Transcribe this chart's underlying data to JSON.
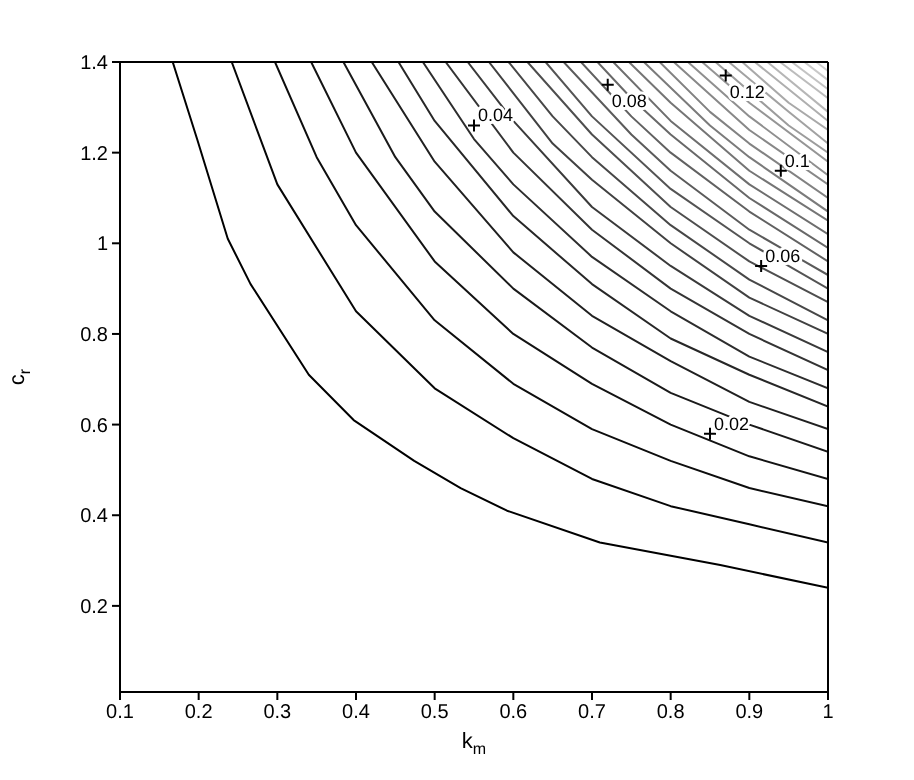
{
  "chart_data": {
    "type": "line",
    "xlabel": "k$_{m}$",
    "ylabel": "c$_{r}$",
    "xlim": [
      0.1,
      1
    ],
    "ylim": [
      0.01,
      1.4
    ],
    "xticks": [
      0.1,
      0.2,
      0.3,
      0.4,
      0.5,
      0.6,
      0.7,
      0.8,
      0.9,
      1
    ],
    "yticks": [
      0.2,
      0.4,
      0.6,
      0.8,
      1,
      1.2,
      1.4
    ],
    "marker": "none",
    "line_style": "solid",
    "series": [
      {
        "color": "#000000",
        "x": [
          0.167,
          0.198,
          0.237,
          0.266,
          0.34,
          0.397,
          0.474,
          0.533,
          0.592,
          0.71,
          0.863,
          1
        ],
        "values": [
          1.4,
          1.23,
          1.01,
          0.91,
          0.71,
          0.61,
          0.52,
          0.46,
          0.41,
          0.34,
          0.29,
          0.24
        ]
      },
      {
        "color": "#060606",
        "x": [
          0.242,
          0.3,
          0.4,
          0.5,
          0.6,
          0.7,
          0.8,
          0.9,
          1
        ],
        "values": [
          1.4,
          1.13,
          0.85,
          0.68,
          0.57,
          0.48,
          0.42,
          0.38,
          0.34
        ]
      },
      {
        "color": "#0d0d0d",
        "x": [
          0.297,
          0.35,
          0.4,
          0.5,
          0.6,
          0.7,
          0.8,
          0.9,
          1
        ],
        "values": [
          1.4,
          1.19,
          1.04,
          0.83,
          0.69,
          0.59,
          0.52,
          0.46,
          0.42
        ]
      },
      {
        "color": "#131313",
        "x": [
          0.343,
          0.4,
          0.5,
          0.6,
          0.7,
          0.8,
          0.9,
          1
        ],
        "values": [
          1.4,
          1.2,
          0.96,
          0.8,
          0.69,
          0.6,
          0.53,
          0.48
        ]
      },
      {
        "color": "#1a1a1a",
        "x": [
          0.384,
          0.45,
          0.5,
          0.6,
          0.7,
          0.8,
          0.9,
          1
        ],
        "values": [
          1.4,
          1.19,
          1.07,
          0.9,
          0.77,
          0.67,
          0.6,
          0.54
        ]
      },
      {
        "color": "#202020",
        "x": [
          0.42,
          0.5,
          0.6,
          0.7,
          0.8,
          0.9,
          1
        ],
        "values": [
          1.4,
          1.18,
          0.98,
          0.84,
          0.74,
          0.65,
          0.59
        ]
      },
      {
        "color": "#272727",
        "x": [
          0.454,
          0.5,
          0.6,
          0.7,
          0.8,
          0.9,
          1
        ],
        "values": [
          1.4,
          1.27,
          1.06,
          0.91,
          0.79,
          0.71,
          0.64
        ]
      },
      {
        "color": "#2d2d2d",
        "x": [
          0.485,
          0.55,
          0.6,
          0.7,
          0.8,
          0.9,
          1
        ],
        "values": [
          1.4,
          1.23,
          1.13,
          0.97,
          0.85,
          0.75,
          0.68
        ]
      },
      {
        "color": "#343434",
        "x": [
          0.514,
          0.6,
          0.7,
          0.8,
          0.9,
          1
        ],
        "values": [
          1.4,
          1.2,
          1.03,
          0.9,
          0.8,
          0.72
        ]
      },
      {
        "color": "#3a3a3a",
        "x": [
          0.542,
          0.6,
          0.7,
          0.8,
          0.9,
          1
        ],
        "values": [
          1.4,
          1.27,
          1.08,
          0.95,
          0.84,
          0.76
        ]
      },
      {
        "color": "#414141",
        "x": [
          0.569,
          0.65,
          0.7,
          0.8,
          0.9,
          1
        ],
        "values": [
          1.4,
          1.22,
          1.14,
          1.0,
          0.88,
          0.8
        ]
      },
      {
        "color": "#474747",
        "x": [
          0.594,
          0.65,
          0.7,
          0.8,
          0.9,
          1
        ],
        "values": [
          1.4,
          1.28,
          1.19,
          1.04,
          0.92,
          0.83
        ]
      },
      {
        "color": "#4e4e4e",
        "x": [
          0.618,
          0.7,
          0.8,
          0.9,
          1
        ],
        "values": [
          1.4,
          1.24,
          1.08,
          0.96,
          0.87
        ]
      },
      {
        "color": "#545454",
        "x": [
          0.641,
          0.7,
          0.8,
          0.9,
          1
        ],
        "values": [
          1.4,
          1.28,
          1.12,
          1.0,
          0.9
        ]
      },
      {
        "color": "#5b5b5b",
        "x": [
          0.664,
          0.75,
          0.8,
          0.9,
          1
        ],
        "values": [
          1.4,
          1.24,
          1.16,
          1.03,
          0.93
        ]
      },
      {
        "color": "#616161",
        "x": [
          0.686,
          0.75,
          0.8,
          0.9,
          1
        ],
        "values": [
          1.4,
          1.28,
          1.2,
          1.07,
          0.96
        ]
      },
      {
        "color": "#686868",
        "x": [
          0.707,
          0.75,
          0.8,
          0.9,
          1
        ],
        "values": [
          1.4,
          1.32,
          1.24,
          1.1,
          0.99
        ]
      },
      {
        "color": "#6e6e6e",
        "x": [
          0.727,
          0.8,
          0.9,
          1
        ],
        "values": [
          1.4,
          1.27,
          1.13,
          1.02
        ]
      },
      {
        "color": "#757575",
        "x": [
          0.747,
          0.8,
          0.9,
          1
        ],
        "values": [
          1.4,
          1.31,
          1.16,
          1.05
        ]
      },
      {
        "color": "#7b7b7b",
        "x": [
          0.766,
          0.85,
          0.9,
          1
        ],
        "values": [
          1.4,
          1.26,
          1.19,
          1.07
        ]
      },
      {
        "color": "#828282",
        "x": [
          0.786,
          0.85,
          0.9,
          1
        ],
        "values": [
          1.4,
          1.29,
          1.22,
          1.1
        ]
      },
      {
        "color": "#888888",
        "x": [
          0.804,
          0.9,
          1
        ],
        "values": [
          1.4,
          1.25,
          1.13
        ]
      },
      {
        "color": "#8f8f8f",
        "x": [
          0.822,
          0.9,
          1
        ],
        "values": [
          1.4,
          1.28,
          1.15
        ]
      },
      {
        "color": "#959595",
        "x": [
          0.84,
          0.9,
          1
        ],
        "values": [
          1.4,
          1.31,
          1.18
        ]
      },
      {
        "color": "#9c9c9c",
        "x": [
          0.857,
          0.95,
          1
        ],
        "values": [
          1.4,
          1.26,
          1.2
        ]
      },
      {
        "color": "#a2a2a2",
        "x": [
          0.874,
          0.95,
          1
        ],
        "values": [
          1.4,
          1.29,
          1.22
        ]
      },
      {
        "color": "#a9a9a9",
        "x": [
          0.891,
          0.95,
          1
        ],
        "values": [
          1.4,
          1.31,
          1.25
        ]
      },
      {
        "color": "#afafaf",
        "x": [
          0.907,
          0.95,
          1
        ],
        "values": [
          1.4,
          1.34,
          1.27
        ]
      },
      {
        "color": "#b6b6b6",
        "x": [
          0.923,
          1
        ],
        "values": [
          1.4,
          1.29
        ]
      },
      {
        "color": "#bcbcbc",
        "x": [
          0.939,
          1
        ],
        "values": [
          1.4,
          1.32
        ]
      },
      {
        "color": "#c3c3c3",
        "x": [
          0.954,
          1
        ],
        "values": [
          1.4,
          1.34
        ]
      },
      {
        "color": "#c9c9c9",
        "x": [
          0.97,
          1
        ],
        "values": [
          1.4,
          1.36
        ]
      },
      {
        "color": "#d0d0d0",
        "x": [
          0.985,
          1
        ],
        "values": [
          1.4,
          1.38
        ]
      }
    ],
    "annotations": [
      {
        "text": "0.02",
        "x": 0.85,
        "y": 0.58
      },
      {
        "text": "0.04",
        "x": 0.55,
        "y": 1.26
      },
      {
        "text": "0.06",
        "x": 0.915,
        "y": 0.95
      },
      {
        "text": "0.08",
        "x": 0.72,
        "y": 1.35
      },
      {
        "text": "0.1",
        "x": 0.94,
        "y": 1.16
      },
      {
        "text": "0.12",
        "x": 0.87,
        "y": 1.37
      }
    ]
  }
}
